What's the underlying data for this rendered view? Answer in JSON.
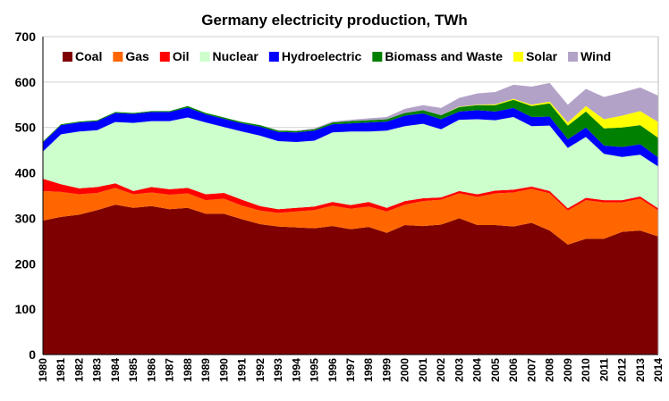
{
  "chart_data": {
    "type": "area",
    "title": "Germany electricity production, TWh",
    "xlabel": "",
    "ylabel": "",
    "ylim": [
      0,
      700
    ],
    "yticks": [
      0,
      100,
      200,
      300,
      400,
      500,
      600,
      700
    ],
    "grid": true,
    "stacked": true,
    "legend_position": "top",
    "x": [
      1980,
      1981,
      1982,
      1983,
      1984,
      1985,
      1986,
      1987,
      1988,
      1989,
      1990,
      1991,
      1992,
      1993,
      1994,
      1995,
      1996,
      1997,
      1998,
      1999,
      2000,
      2001,
      2002,
      2003,
      2004,
      2005,
      2006,
      2007,
      2008,
      2009,
      2010,
      2011,
      2012,
      2013,
      2014
    ],
    "series": [
      {
        "name": "Coal",
        "color": "#7f0000",
        "values": [
          295,
          303,
          308,
          318,
          330,
          323,
          327,
          320,
          323,
          310,
          310,
          298,
          287,
          282,
          280,
          278,
          283,
          276,
          281,
          268,
          285,
          283,
          286,
          300,
          285,
          285,
          282,
          290,
          273,
          242,
          255,
          255,
          270,
          273,
          260
        ]
      },
      {
        "name": "Gas",
        "color": "#ff6600",
        "values": [
          65,
          55,
          45,
          38,
          37,
          30,
          30,
          32,
          32,
          30,
          33,
          30,
          30,
          30,
          35,
          40,
          45,
          45,
          45,
          47,
          45,
          55,
          55,
          55,
          62,
          70,
          75,
          75,
          82,
          75,
          85,
          80,
          65,
          70,
          57
        ]
      },
      {
        "name": "Oil",
        "color": "#ff0000",
        "values": [
          27,
          17,
          13,
          13,
          10,
          7,
          12,
          12,
          12,
          13,
          13,
          13,
          10,
          8,
          8,
          8,
          8,
          8,
          10,
          8,
          8,
          6,
          5,
          5,
          6,
          6,
          6,
          5,
          5,
          5,
          5,
          5,
          5,
          5,
          5
        ]
      },
      {
        "name": "Nuclear",
        "color": "#ccffcc",
        "values": [
          60,
          110,
          125,
          125,
          135,
          150,
          145,
          150,
          155,
          158,
          145,
          150,
          155,
          150,
          145,
          145,
          153,
          162,
          155,
          170,
          165,
          164,
          150,
          157,
          165,
          155,
          160,
          133,
          144,
          133,
          134,
          102,
          95,
          92,
          92
        ]
      },
      {
        "name": "Hydroelectric",
        "color": "#0000ff",
        "values": [
          20,
          20,
          20,
          20,
          20,
          20,
          20,
          20,
          22,
          18,
          18,
          18,
          20,
          20,
          21,
          22,
          18,
          18,
          20,
          20,
          23,
          23,
          22,
          18,
          20,
          19,
          20,
          20,
          20,
          19,
          21,
          18,
          22,
          23,
          20
        ]
      },
      {
        "name": "Biomass and Waste",
        "color": "#008000",
        "values": [
          2,
          2,
          2,
          2,
          2,
          2,
          2,
          2,
          3,
          3,
          3,
          3,
          3,
          3,
          3,
          3,
          4,
          5,
          5,
          5,
          6,
          7,
          9,
          10,
          11,
          14,
          18,
          24,
          29,
          30,
          35,
          38,
          43,
          42,
          43
        ]
      },
      {
        "name": "Solar",
        "color": "#ffff00",
        "values": [
          0,
          0,
          0,
          0,
          0,
          0,
          0,
          0,
          0,
          0,
          0,
          0,
          0,
          0,
          0,
          0,
          0,
          0,
          0,
          0,
          0,
          0,
          0,
          1,
          1,
          2,
          2,
          3,
          4,
          7,
          12,
          20,
          26,
          31,
          35
        ]
      },
      {
        "name": "Wind",
        "color": "#b3a2c7",
        "values": [
          0,
          0,
          0,
          0,
          0,
          0,
          0,
          0,
          0,
          0,
          0,
          0,
          0,
          1,
          1,
          2,
          2,
          3,
          4,
          5,
          9,
          11,
          16,
          19,
          25,
          27,
          31,
          40,
          41,
          39,
          38,
          49,
          51,
          52,
          58
        ]
      }
    ]
  }
}
